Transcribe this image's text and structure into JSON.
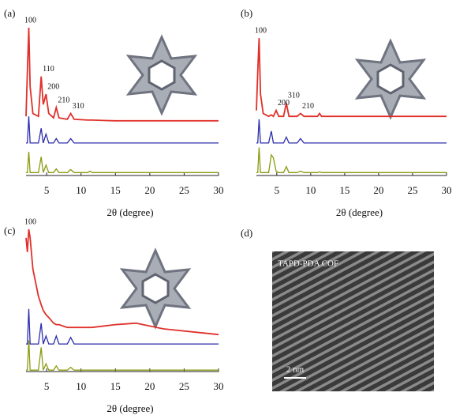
{
  "chart_data": [
    {
      "type": "line",
      "label": "(a)",
      "xlabel": "2θ (degree)",
      "xlim": [
        2,
        30
      ],
      "xticks": [
        5,
        10,
        15,
        20,
        25,
        30
      ],
      "ylim": [
        0,
        100
      ],
      "x": [
        2,
        2.2,
        2.4,
        2.6,
        3.0,
        3.8,
        4.2,
        4.5,
        4.9,
        5.3,
        6.0,
        6.4,
        6.8,
        8.0,
        8.5,
        9.0,
        11.0,
        11.3,
        11.6,
        15,
        18,
        22,
        30
      ],
      "series": [
        {
          "color": "#e0302a",
          "values": [
            40,
            70,
            100,
            60,
            42,
            40,
            67,
            48,
            55,
            42,
            39,
            46,
            39,
            38,
            42,
            38,
            37.5,
            37.5,
            37.5,
            37,
            37,
            37,
            37
          ]
        },
        {
          "color": "#2c2cae",
          "values": [
            22,
            22,
            40,
            22,
            22,
            22,
            32,
            22,
            28,
            22,
            22,
            25,
            22,
            22,
            25,
            22,
            22,
            22,
            22,
            22,
            22,
            22,
            22
          ]
        },
        {
          "color": "#8a9a10",
          "values": [
            2,
            2,
            16,
            2,
            2,
            2,
            12.7,
            2,
            7,
            2,
            2,
            4.5,
            2,
            2,
            4,
            2,
            2,
            3,
            2,
            2,
            2,
            2,
            2
          ]
        }
      ],
      "peak_labels": [
        {
          "text": "100",
          "x": 2.4
        },
        {
          "text": "110",
          "x": 4.2
        },
        {
          "text": "200",
          "x": 4.9
        },
        {
          "text": "210",
          "x": 6.4
        },
        {
          "text": "310",
          "x": 8.5
        }
      ]
    },
    {
      "type": "line",
      "label": "(b)",
      "xlabel": "2θ (degree)",
      "xlim": [
        2,
        30
      ],
      "xticks": [
        5,
        10,
        15,
        20,
        25,
        30
      ],
      "ylim": [
        0,
        100
      ],
      "x": [
        2,
        2.2,
        2.4,
        2.6,
        3.0,
        3.8,
        4.2,
        4.5,
        4.9,
        5.3,
        6.0,
        6.4,
        6.8,
        8.0,
        8.5,
        9.0,
        11.0,
        11.3,
        11.6,
        15,
        18,
        22,
        30
      ],
      "series": [
        {
          "color": "#e0302a",
          "values": [
            44,
            70,
            93,
            55,
            42,
            40,
            41,
            40,
            44,
            40,
            40,
            49,
            40,
            40,
            42,
            40,
            40,
            42,
            40,
            40,
            40,
            40,
            40
          ]
        },
        {
          "color": "#2c2cae",
          "values": [
            22,
            22,
            38,
            22,
            22,
            22,
            30,
            22,
            22,
            22,
            22,
            26,
            22,
            22,
            25,
            22,
            22,
            22,
            22,
            22,
            22,
            22,
            22
          ]
        },
        {
          "color": "#8a9a10",
          "values": [
            2,
            2,
            19,
            2,
            2,
            2,
            14,
            12,
            3,
            2,
            2,
            6,
            2,
            2,
            3,
            2,
            2,
            2.5,
            2,
            2,
            2,
            2,
            2
          ]
        }
      ],
      "peak_labels": [
        {
          "text": "100",
          "x": 2.4
        },
        {
          "text": "200",
          "x": 4.9
        },
        {
          "text": "310",
          "x": 6.4
        },
        {
          "text": "210",
          "x": 8.5
        }
      ]
    },
    {
      "type": "line",
      "label": "(c)",
      "xlabel": "2θ (degree)",
      "xlim": [
        2,
        30
      ],
      "xticks": [
        5,
        10,
        15,
        20,
        25,
        30
      ],
      "ylim": [
        0,
        100
      ],
      "x": [
        2,
        2.2,
        2.4,
        2.6,
        3.0,
        3.8,
        4.2,
        4.5,
        4.9,
        5.3,
        6.0,
        6.4,
        6.8,
        8.0,
        8.5,
        9.0,
        11.0,
        11.3,
        11.6,
        15,
        18,
        22,
        30
      ],
      "series": [
        {
          "color": "#e0302a",
          "values": [
            94,
            84,
            100,
            94,
            72,
            53,
            47,
            43,
            40,
            38,
            34,
            33,
            33,
            31,
            31,
            31,
            31,
            31,
            31,
            33,
            34,
            30,
            26
          ]
        },
        {
          "color": "#2c2cae",
          "values": [
            19.4,
            19.4,
            44,
            19.4,
            19.4,
            19.4,
            34,
            19.4,
            25,
            19.4,
            19.4,
            25,
            19.4,
            19.4,
            24,
            19.4,
            19.4,
            19.4,
            19.4,
            19.4,
            19.4,
            19.4,
            19.4
          ]
        },
        {
          "color": "#8a9a10",
          "values": [
            1,
            1,
            22,
            1,
            1,
            1,
            17,
            1,
            5.5,
            1,
            1,
            4,
            1,
            1,
            3,
            1,
            1,
            1,
            1,
            1,
            1,
            1,
            1
          ]
        }
      ],
      "peak_labels": [
        {
          "text": "100",
          "x": 2.4
        }
      ]
    }
  ],
  "image_panel": {
    "label": "(d)",
    "caption": "TAPD-PDA COF",
    "scale_bar": "2 nm"
  }
}
